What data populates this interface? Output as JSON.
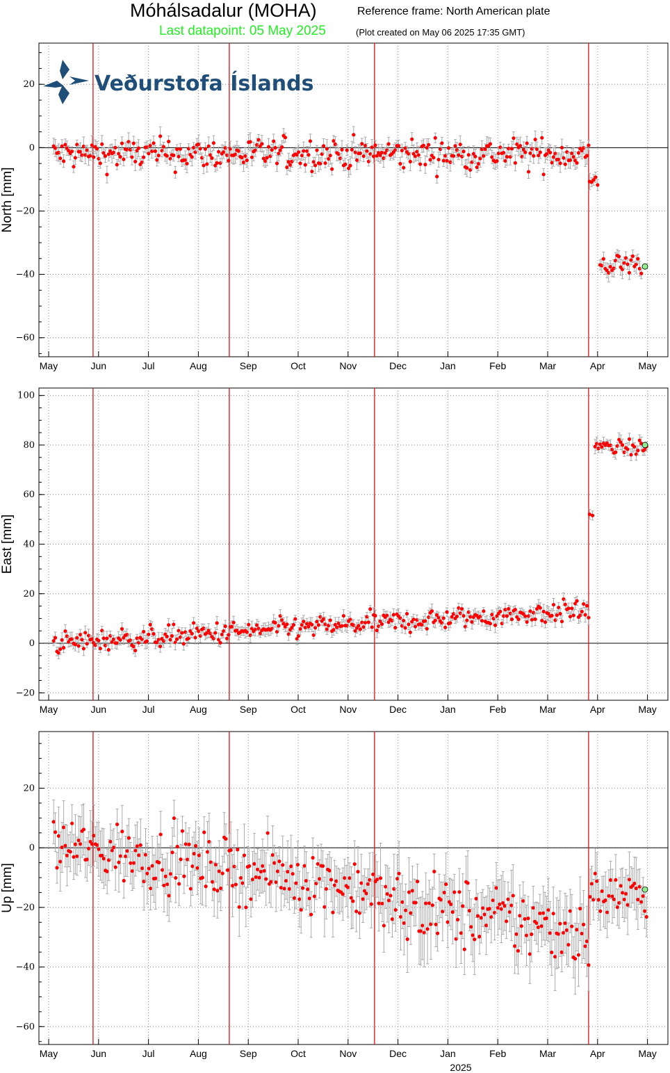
{
  "header": {
    "title": "Móhálsadalur (MOHA)",
    "reference": "Reference frame: North American plate",
    "last_datapoint": "Last datapoint: 05 May 2025",
    "created": "(Plot created on May 06 2025 17:35 GMT)"
  },
  "logo": {
    "text": "Veðurstofa Íslands"
  },
  "colors": {
    "data": "#ff0000",
    "last_point": "#90ee90",
    "events": "#e01010",
    "errorbars": "#aaaaaa",
    "header_green": "#22ee22"
  },
  "x_axis": {
    "months": [
      "May",
      "Jun",
      "Jul",
      "Aug",
      "Sep",
      "Oct",
      "Nov",
      "Dec",
      "Jan",
      "Feb",
      "Mar",
      "Apr",
      "May"
    ],
    "year_label": "2025"
  },
  "chart_data": [
    {
      "type": "scatter",
      "ylabel": "North [mm]",
      "ylim": [
        -66,
        33
      ],
      "yticks": [
        20,
        0,
        -20,
        -40,
        -60
      ],
      "grid": true,
      "event_months": [
        0.89,
        3.62,
        6.53,
        10.82
      ],
      "segments": [
        {
          "from": 0.1,
          "to": 10.82,
          "base": -2,
          "trend": 0,
          "noise": 2.5,
          "err": 2
        },
        {
          "from": 10.84,
          "to": 11.0,
          "base": -11,
          "trend": 0,
          "noise": 1,
          "err": 2
        },
        {
          "from": 11.05,
          "to": 11.98,
          "base": -37,
          "trend": 0,
          "noise": 1.8,
          "err": 2
        }
      ],
      "last_value": -37.5,
      "last_month": 11.95
    },
    {
      "type": "scatter",
      "ylabel": "East [mm]",
      "ylim": [
        -23,
        103
      ],
      "yticks": [
        100,
        80,
        60,
        40,
        20,
        0,
        -20
      ],
      "grid": true,
      "event_months": [
        0.89,
        3.62,
        6.53,
        10.82
      ],
      "segments": [
        {
          "from": 0.1,
          "to": 10.82,
          "base": 0,
          "trend": 1.25,
          "noise": 2.2,
          "err": 2
        },
        {
          "from": 10.84,
          "to": 10.9,
          "base": 52,
          "trend": 0,
          "noise": 0.5,
          "err": 2
        },
        {
          "from": 10.95,
          "to": 11.98,
          "base": 79,
          "trend": 0,
          "noise": 1.5,
          "err": 2
        }
      ],
      "last_value": 80,
      "last_month": 11.95
    },
    {
      "type": "scatter",
      "ylabel": "Up [mm]",
      "ylim": [
        -66,
        39
      ],
      "yticks": [
        20,
        0,
        -20,
        -40,
        -60
      ],
      "grid": true,
      "event_months": [
        0.89,
        3.62,
        6.53,
        10.82
      ],
      "segments": [
        {
          "from": 0.1,
          "to": 6.5,
          "base": 1,
          "trend": -2.3,
          "noise": 5,
          "err": 7
        },
        {
          "from": 6.55,
          "to": 10.82,
          "base": -18,
          "trend": -2.4,
          "noise": 6,
          "err": 8
        },
        {
          "from": 10.85,
          "to": 11.98,
          "base": -16,
          "trend": 0,
          "noise": 4,
          "err": 7
        }
      ],
      "last_value": -14,
      "last_month": 11.95
    }
  ]
}
